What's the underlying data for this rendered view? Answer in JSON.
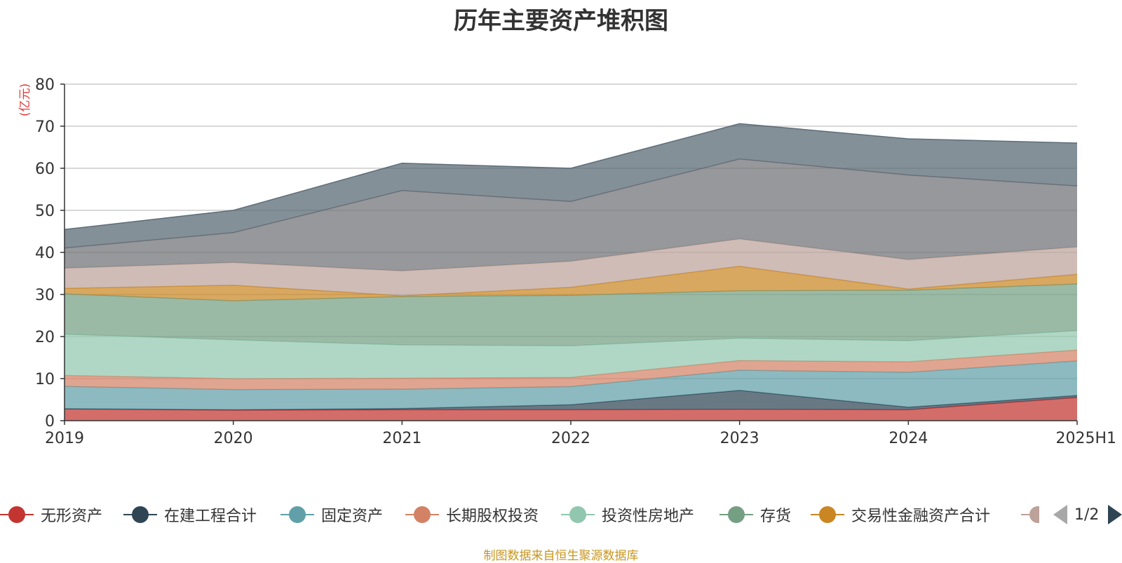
{
  "chart_data": {
    "type": "area",
    "stacked": true,
    "title": "历年主要资产堆积图",
    "ylabel": "(亿元)",
    "ylim": [
      0,
      80
    ],
    "yticks": [
      "0",
      "10",
      "20",
      "30",
      "40",
      "50",
      "60",
      "70",
      "80"
    ],
    "categories": [
      "2019",
      "2020",
      "2021",
      "2022",
      "2023",
      "2024",
      "2025H1"
    ],
    "grid": true,
    "legend_position": "bottom",
    "series": [
      {
        "name": "无形资产",
        "color": "#c23531",
        "values": [
          2.8,
          2.5,
          2.6,
          2.6,
          2.7,
          2.6,
          5.5
        ]
      },
      {
        "name": "在建工程合计",
        "color": "#2f4554",
        "values": [
          0.05,
          0.1,
          0.3,
          1.2,
          4.5,
          0.6,
          0.5
        ]
      },
      {
        "name": "固定资产",
        "color": "#61a0a8",
        "values": [
          5.3,
          4.8,
          4.6,
          4.3,
          4.8,
          8.3,
          8.2
        ]
      },
      {
        "name": "长期股权投资",
        "color": "#d48265",
        "values": [
          2.6,
          2.6,
          2.6,
          2.2,
          2.3,
          2.5,
          2.6
        ]
      },
      {
        "name": "投资性房地产",
        "color": "#91c7ae",
        "values": [
          9.8,
          9.2,
          7.9,
          7.5,
          5.3,
          5.0,
          4.6
        ]
      },
      {
        "name": "存货",
        "color": "#749f83",
        "values": [
          9.6,
          9.3,
          11.5,
          12.0,
          11.3,
          12.0,
          11.1
        ]
      },
      {
        "name": "交易性金融资产合计",
        "color": "#ca8622",
        "values": [
          1.3,
          3.7,
          0.2,
          1.9,
          5.8,
          0.3,
          2.3
        ]
      },
      {
        "name": "",
        "color": "#bda29a",
        "values": [
          4.8,
          5.4,
          5.9,
          6.2,
          6.5,
          7.0,
          6.5
        ]
      },
      {
        "name": "",
        "color": "#6e7074",
        "values": [
          4.8,
          7.1,
          19.1,
          14.2,
          19.0,
          20.1,
          14.5
        ]
      },
      {
        "name": "",
        "color": "#546570",
        "values": [
          4.4,
          5.3,
          6.5,
          7.9,
          8.4,
          8.6,
          10.2
        ]
      }
    ],
    "legend_pager": "1/2",
    "source_note": "制图数据来自恒生聚源数据库"
  }
}
